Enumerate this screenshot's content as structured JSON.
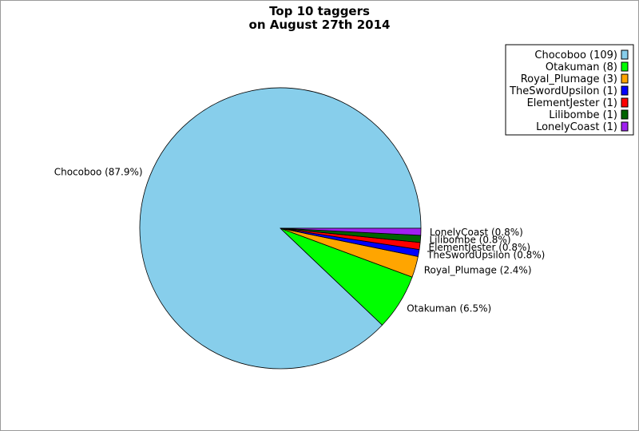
{
  "chart_data": {
    "type": "pie",
    "title": "Top 10 taggers",
    "subtitle": "on August 27th 2014",
    "slices": [
      {
        "name": "Chocoboo",
        "value": 109,
        "percent_label": "87.9%",
        "color": "#87CEEB"
      },
      {
        "name": "Otakuman",
        "value": 8,
        "percent_label": "6.5%",
        "color": "#00FF00"
      },
      {
        "name": "Royal_Plumage",
        "value": 3,
        "percent_label": "2.4%",
        "color": "#FFA500"
      },
      {
        "name": "TheSwordUpsilon",
        "value": 1,
        "percent_label": "0.8%",
        "color": "#0000FF"
      },
      {
        "name": "ElementJester",
        "value": 1,
        "percent_label": "0.8%",
        "color": "#FF0000"
      },
      {
        "name": "Lilibombe",
        "value": 1,
        "percent_label": "0.8%",
        "color": "#006400"
      },
      {
        "name": "LonelyCoast",
        "value": 1,
        "percent_label": "0.8%",
        "color": "#A020F0"
      }
    ],
    "legend_placement": "top-right",
    "direction": "counterclockwise",
    "start_angle": "right"
  }
}
